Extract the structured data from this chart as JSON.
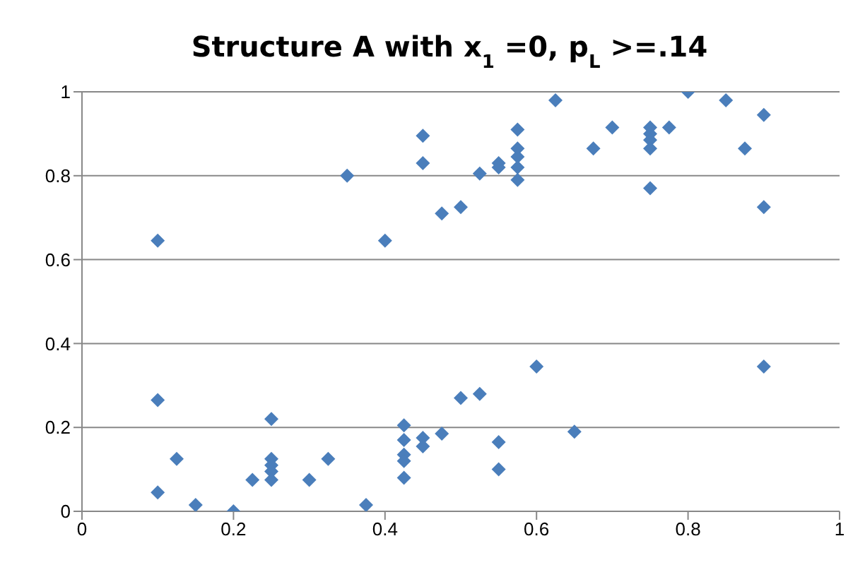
{
  "chart_data": {
    "type": "scatter",
    "title": "Structure A with x$_{1}$ =0, p$_{L}$ >=.14",
    "x": [
      0.1,
      0.35,
      0.4,
      0.45,
      0.45,
      0.475,
      0.5,
      0.525,
      0.55,
      0.55,
      0.575,
      0.575,
      0.575,
      0.575,
      0.575,
      0.625,
      0.675,
      0.7,
      0.75,
      0.75,
      0.75,
      0.75,
      0.75,
      0.775,
      0.8,
      0.85,
      0.875,
      0.9,
      0.9,
      0.1,
      0.1,
      0.125,
      0.15,
      0.2,
      0.225,
      0.25,
      0.25,
      0.25,
      0.25,
      0.25,
      0.3,
      0.325,
      0.375,
      0.425,
      0.425,
      0.425,
      0.425,
      0.425,
      0.45,
      0.45,
      0.475,
      0.5,
      0.525,
      0.55,
      0.55,
      0.6,
      0.65,
      0.9
    ],
    "series": [
      {
        "color": "#4a7ebb",
        "values": [
          0.645,
          0.8,
          0.645,
          0.895,
          0.83,
          0.71,
          0.725,
          0.805,
          0.83,
          0.82,
          0.91,
          0.865,
          0.845,
          0.82,
          0.79,
          0.98,
          0.865,
          0.915,
          0.915,
          0.9,
          0.885,
          0.865,
          0.77,
          0.915,
          1.0,
          0.98,
          0.865,
          0.945,
          0.725,
          0.265,
          0.045,
          0.125,
          0.015,
          0.0,
          0.075,
          0.22,
          0.125,
          0.11,
          0.095,
          0.075,
          0.075,
          0.125,
          0.015,
          0.205,
          0.17,
          0.135,
          0.12,
          0.08,
          0.175,
          0.155,
          0.185,
          0.27,
          0.28,
          0.165,
          0.1,
          0.345,
          0.19,
          0.345
        ]
      }
    ],
    "xlim": [
      0,
      1
    ],
    "xticks": [
      0,
      0.2,
      0.4,
      0.6,
      0.8,
      1
    ],
    "ylim": [
      0,
      1
    ],
    "yticks": [
      0,
      0.2,
      0.4,
      0.6,
      0.8,
      1
    ],
    "grid": "y",
    "marker": "diamond"
  }
}
